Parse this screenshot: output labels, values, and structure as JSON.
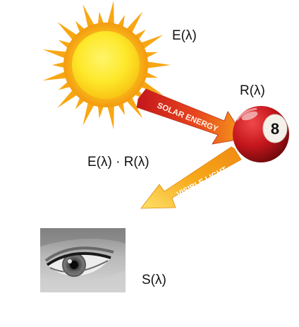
{
  "labels": {
    "illuminant": "E(λ)",
    "reflectance": "R(λ)",
    "product": "E(λ) · R(λ)",
    "sensor": "S(λ)"
  },
  "arrows": {
    "incoming": "SOLAR ENERGY",
    "outgoing": "VISIBLE LIGHT"
  },
  "ball": {
    "number": "8"
  },
  "colors": {
    "sun_core": "#fde82a",
    "sun_rays": "#f8a712",
    "arrow_incoming": "#e8461e",
    "arrow_outgoing": "#f7a81b",
    "ball_red": "#c4161c"
  },
  "icons": {
    "sun": "sun-icon",
    "ball": "billiard-ball-icon",
    "eye": "eye-photo"
  }
}
